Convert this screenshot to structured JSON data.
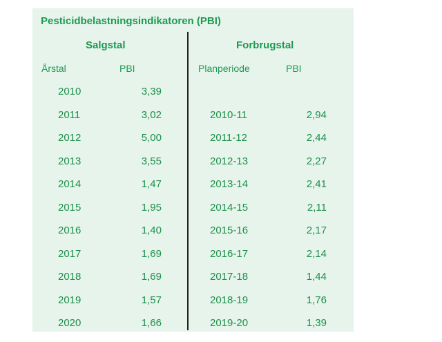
{
  "table": {
    "title": "Pesticidbelastningsindikatoren (PBI)",
    "left_group": "Salgstal",
    "right_group": "Forbrugstal",
    "headers": {
      "year": "Årstal",
      "pbi_sales": "PBI",
      "period": "Planperiode",
      "pbi_usage": "PBI"
    },
    "rows": [
      {
        "year": "2010",
        "pbi_sales": "3,39",
        "period": "",
        "pbi_usage": ""
      },
      {
        "year": "2011",
        "pbi_sales": "3,02",
        "period": "2010-11",
        "pbi_usage": "2,94"
      },
      {
        "year": "2012",
        "pbi_sales": "5,00",
        "period": "2011-12",
        "pbi_usage": "2,44"
      },
      {
        "year": "2013",
        "pbi_sales": "3,55",
        "period": "2012-13",
        "pbi_usage": "2,27"
      },
      {
        "year": "2014",
        "pbi_sales": "1,47",
        "period": "2013-14",
        "pbi_usage": "2,41"
      },
      {
        "year": "2015",
        "pbi_sales": "1,95",
        "period": "2014-15",
        "pbi_usage": "2,11"
      },
      {
        "year": "2016",
        "pbi_sales": "1,40",
        "period": "2015-16",
        "pbi_usage": "2,17"
      },
      {
        "year": "2017",
        "pbi_sales": "1,69",
        "period": "2016-17",
        "pbi_usage": "2,14"
      },
      {
        "year": "2018",
        "pbi_sales": "1,69",
        "period": "2017-18",
        "pbi_usage": "1,44"
      },
      {
        "year": "2019",
        "pbi_sales": "1,57",
        "period": "2018-19",
        "pbi_usage": "1,76"
      },
      {
        "year": "2020",
        "pbi_sales": "1,66",
        "period": "2019-20",
        "pbi_usage": "1,39"
      }
    ]
  },
  "colors": {
    "panel_background": "#e6f4ec",
    "text_green": "#1e9a50",
    "divider": "#222222"
  }
}
